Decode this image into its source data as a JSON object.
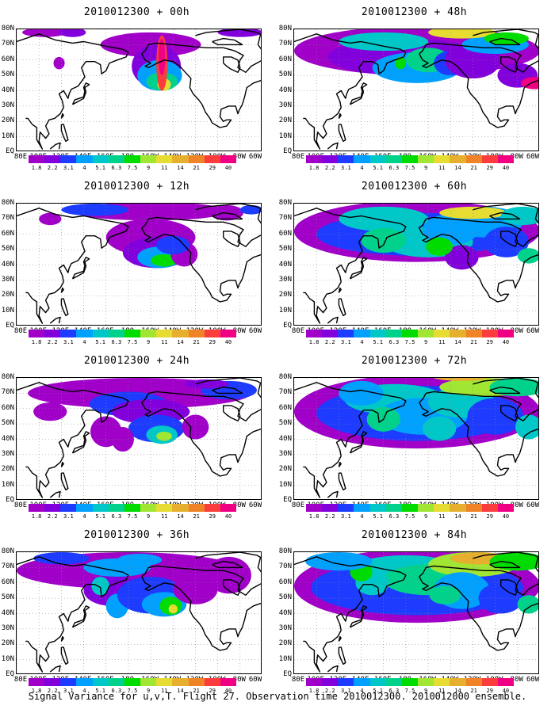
{
  "panels": [
    {
      "title": "2010012300 + 00h",
      "lead": "00h"
    },
    {
      "title": "2010012300 + 48h",
      "lead": "48h"
    },
    {
      "title": "2010012300 + 12h",
      "lead": "12h"
    },
    {
      "title": "2010012300 + 60h",
      "lead": "60h"
    },
    {
      "title": "2010012300 + 24h",
      "lead": "24h"
    },
    {
      "title": "2010012300 + 72h",
      "lead": "72h"
    },
    {
      "title": "2010012300 + 36h",
      "lead": "36h"
    },
    {
      "title": "2010012300 + 84h",
      "lead": "84h"
    }
  ],
  "lat_labels": [
    "80N",
    "70N",
    "60N",
    "50N",
    "40N",
    "30N",
    "20N",
    "10N",
    "EQ"
  ],
  "lon_labels": [
    "80E",
    "100E",
    "120E",
    "140E",
    "160E",
    "180",
    "160W",
    "140W",
    "120W",
    "100W",
    "80W",
    "60W"
  ],
  "colorbar": {
    "labels": [
      "1.8",
      "2.2",
      "3.1",
      "4",
      "5.1",
      "6.3",
      "7.5",
      "9",
      "11",
      "14",
      "21",
      "29",
      "40"
    ],
    "colors": [
      "#a000c8",
      "#8200dc",
      "#1e3cff",
      "#00a0ff",
      "#00c8c8",
      "#00d28c",
      "#00dc00",
      "#a0e632",
      "#e6dc32",
      "#e6af2d",
      "#f08228",
      "#fa3c3c",
      "#f00082"
    ]
  },
  "caption": "Signal Variance for u,v,T. Flight 27. Observation time 2010012300. 2010012000 ensemble."
}
